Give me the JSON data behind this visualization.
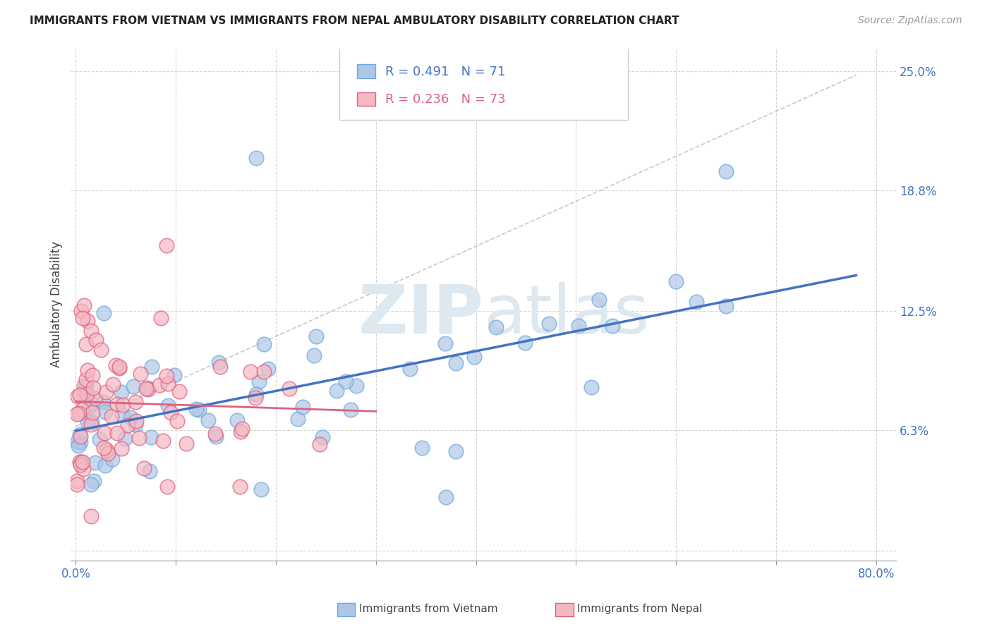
{
  "title": "IMMIGRANTS FROM VIETNAM VS IMMIGRANTS FROM NEPAL AMBULATORY DISABILITY CORRELATION CHART",
  "source": "Source: ZipAtlas.com",
  "ylabel": "Ambulatory Disability",
  "vietnam_R": 0.491,
  "vietnam_N": 71,
  "nepal_R": 0.236,
  "nepal_N": 73,
  "vietnam_face_color": "#aec6e8",
  "vietnam_edge_color": "#6fa8dc",
  "nepal_face_color": "#f4b8c1",
  "nepal_edge_color": "#e06080",
  "vietnam_line_color": "#4472c4",
  "nepal_line_color": "#e06080",
  "dashed_line_color": "#bbbbbb",
  "watermark_color": "#dde8f0",
  "ytick_labels": [
    "",
    "6.3%",
    "12.5%",
    "18.8%",
    "25.0%"
  ],
  "ytick_vals": [
    0.0,
    0.063,
    0.125,
    0.188,
    0.25
  ],
  "xtick_vals": [
    0.0,
    0.1,
    0.2,
    0.3,
    0.4,
    0.5,
    0.6,
    0.7,
    0.8
  ],
  "xlim": [
    -0.005,
    0.82
  ],
  "ylim": [
    -0.005,
    0.262
  ],
  "title_fontsize": 11,
  "source_fontsize": 10,
  "tick_fontsize": 12,
  "legend_label_fontsize": 13
}
